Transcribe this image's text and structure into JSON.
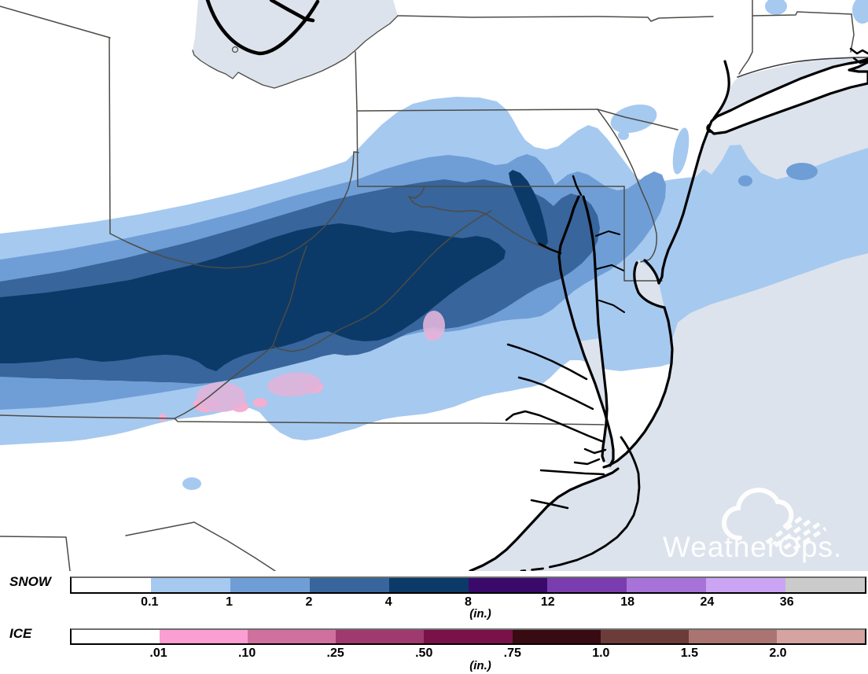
{
  "logo": {
    "text": "WeatherOps."
  },
  "map": {
    "ocean_color": "#dce3ec",
    "land_color": "#ffffff",
    "state_border_color": "#4c4c46",
    "coastline_color": "#000000",
    "ice_overlay_colors": [
      "#e0b4da",
      "#f5aecf"
    ],
    "features": [
      "lake-erie",
      "long-island",
      "long-island-sound",
      "chesapeake-bay",
      "delaware-bay",
      "atlantic-ocean",
      "outer-banks",
      "state-borders",
      "snow-accumulation-contours",
      "ice-accumulation-contours"
    ]
  },
  "legend": {
    "unit_label": "(in.)",
    "rows": [
      {
        "id": "snow",
        "label": "SNOW",
        "ticks": [
          "0.1",
          "1",
          "2",
          "4",
          "8",
          "12",
          "18",
          "24",
          "36"
        ],
        "colors": [
          "#ffffff",
          "#a6c9f0",
          "#6f9ed6",
          "#38659b",
          "#0b3a68",
          "#3a0a6b",
          "#7a3daf",
          "#a873d8",
          "#cba4f4",
          "#cbcbcb"
        ]
      },
      {
        "id": "ice",
        "label": "ICE",
        "ticks": [
          ".01",
          ".10",
          ".25",
          ".50",
          ".75",
          "1.0",
          "1.5",
          "2.0"
        ],
        "colors": [
          "#ffffff",
          "#fb9ed3",
          "#d0709f",
          "#9e3a6e",
          "#7a1148",
          "#380b13",
          "#6b3c39",
          "#a97471",
          "#d4a3a2"
        ]
      }
    ]
  }
}
